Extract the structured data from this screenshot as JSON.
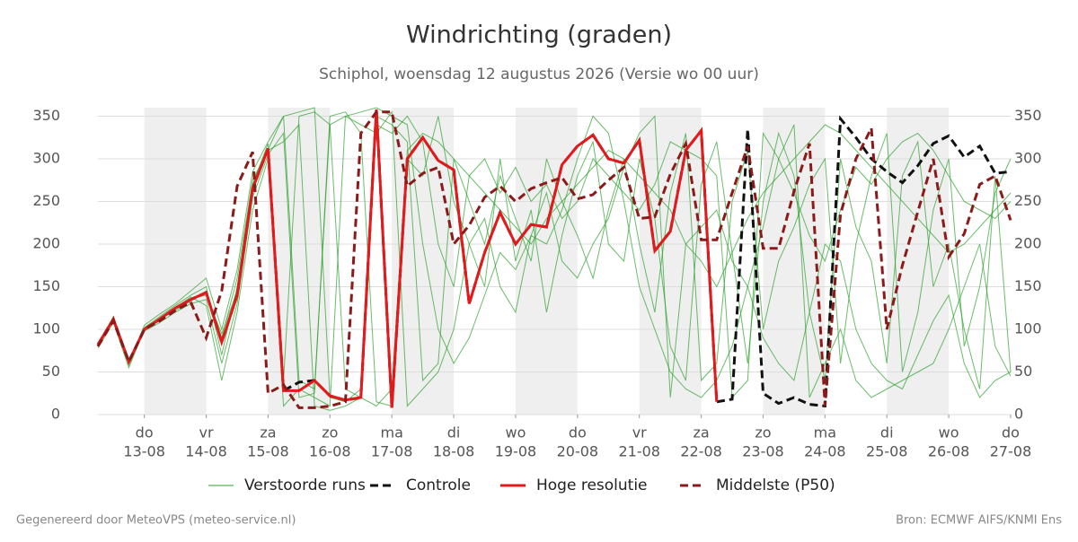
{
  "chart_data": {
    "type": "line",
    "title": "Windrichting (graden)",
    "subtitle": "Schiphol, woensdag 12 augustus 2026 (Versie wo 00 uur)",
    "footer_left": "Gegenereerd door MeteoVPS (meteo-service.nl)",
    "footer_right": "Bron: ECMWF AIFS/KNMI Ens",
    "categories": [
      null,
      null,
      null,
      "do",
      null,
      null,
      null,
      "vr",
      null,
      null,
      null,
      "za",
      null,
      null,
      null,
      "zo",
      null,
      null,
      null,
      "ma",
      null,
      null,
      null,
      "di",
      null,
      null,
      null,
      "wo",
      null,
      null,
      null,
      "do",
      null,
      null,
      null,
      "vr",
      null,
      null,
      null,
      "za",
      null,
      null,
      null,
      "zo",
      null,
      null,
      null,
      "ma",
      null,
      null,
      null,
      "di",
      null,
      null,
      null,
      "wo",
      null,
      null,
      null,
      "do"
    ],
    "category_dates": [
      null,
      null,
      null,
      "13-08",
      null,
      null,
      null,
      "14-08",
      null,
      null,
      null,
      "15-08",
      null,
      null,
      null,
      "16-08",
      null,
      null,
      null,
      "17-08",
      null,
      null,
      null,
      "18-08",
      null,
      null,
      null,
      "19-08",
      null,
      null,
      null,
      "20-08",
      null,
      null,
      null,
      "21-08",
      null,
      null,
      null,
      "22-08",
      null,
      null,
      null,
      "23-08",
      null,
      null,
      null,
      "24-08",
      null,
      null,
      null,
      "25-08",
      null,
      null,
      null,
      "26-08",
      null,
      null,
      null,
      "27-08"
    ],
    "ylim": [
      0,
      360
    ],
    "yticks": [
      0,
      50,
      100,
      150,
      200,
      250,
      300,
      350
    ],
    "grid": true,
    "ensemble": {
      "name": "Verstoorde runs",
      "color": "#2ca02c",
      "runs": [
        [
          80,
          115,
          58,
          102,
          115,
          128,
          140,
          150,
          70,
          150,
          270,
          318,
          40,
          350,
          355,
          340,
          30,
          20,
          350,
          340,
          320,
          40,
          60,
          300,
          250,
          200,
          280,
          230,
          180,
          300,
          250,
          210,
          160,
          240,
          300,
          200,
          120,
          260,
          330,
          40,
          60,
          250,
          310,
          100,
          180,
          220,
          270,
          300,
          60,
          200,
          280,
          330,
          50,
          120,
          240,
          300,
          80,
          150,
          260,
          300
        ],
        [
          83,
          110,
          65,
          98,
          108,
          120,
          130,
          135,
          60,
          130,
          255,
          305,
          330,
          20,
          25,
          350,
          355,
          330,
          15,
          10,
          300,
          280,
          350,
          250,
          200,
          150,
          300,
          180,
          240,
          120,
          210,
          280,
          320,
          200,
          180,
          300,
          230,
          80,
          40,
          270,
          320,
          190,
          60,
          250,
          330,
          280,
          120,
          40,
          300,
          220,
          180,
          60,
          280,
          320,
          150,
          200,
          100,
          30,
          280,
          50
        ],
        [
          81,
          112,
          60,
          105,
          118,
          130,
          145,
          160,
          100,
          170,
          285,
          320,
          350,
          355,
          360,
          20,
          15,
          30,
          340,
          330,
          350,
          320,
          200,
          150,
          280,
          300,
          260,
          290,
          250,
          270,
          230,
          250,
          300,
          280,
          260,
          240,
          270,
          320,
          310,
          300,
          280,
          20,
          40,
          330,
          300,
          260,
          210,
          180,
          240,
          290,
          270,
          300,
          320,
          330,
          310,
          280,
          250,
          240,
          230,
          250
        ],
        [
          78,
          108,
          55,
          100,
          110,
          125,
          138,
          128,
          40,
          120,
          240,
          300,
          10,
          30,
          20,
          10,
          350,
          340,
          330,
          355,
          10,
          30,
          50,
          100,
          200,
          230,
          150,
          120,
          210,
          260,
          180,
          160,
          200,
          230,
          290,
          330,
          350,
          20,
          200,
          220,
          240,
          180,
          150,
          90,
          60,
          40,
          120,
          200,
          180,
          100,
          60,
          40,
          30,
          70,
          110,
          140,
          60,
          20,
          40,
          50
        ],
        [
          82,
          114,
          63,
          99,
          113,
          122,
          133,
          145,
          90,
          160,
          275,
          310,
          320,
          340,
          10,
          5,
          10,
          20,
          10,
          30,
          310,
          330,
          320,
          300,
          280,
          260,
          240,
          220,
          200,
          230,
          250,
          270,
          290,
          310,
          300,
          280,
          260,
          240,
          200,
          180,
          150,
          190,
          230,
          260,
          280,
          300,
          320,
          340,
          330,
          310,
          290,
          270,
          250,
          230,
          210,
          190,
          200,
          220,
          240,
          260
        ],
        [
          80,
          111,
          61,
          101,
          112,
          124,
          136,
          140,
          95,
          145,
          262,
          311,
          350,
          40,
          30,
          340,
          350,
          355,
          360,
          350,
          340,
          200,
          100,
          60,
          90,
          140,
          190,
          170,
          210,
          200,
          240,
          300,
          350,
          330,
          250,
          150,
          100,
          50,
          30,
          20,
          40,
          80,
          150,
          220,
          300,
          340,
          20,
          60,
          100,
          40,
          20,
          30,
          40,
          50,
          60,
          100,
          150,
          200,
          80,
          45
        ]
      ]
    },
    "series": [
      {
        "name": "Controle",
        "color": "#111111",
        "dash": "dashed",
        "values": [
          82,
          112,
          62,
          100,
          112,
          125,
          135,
          143,
          85,
          140,
          265,
          312,
          28,
          38,
          40,
          22,
          17,
          20,
          358,
          8,
          300,
          325,
          298,
          287,
          130,
          190,
          237,
          200,
          223,
          220,
          293,
          315,
          328,
          300,
          295,
          322,
          192,
          215,
          310,
          333,
          15,
          18,
          335,
          25,
          13,
          20,
          12,
          10,
          347,
          325,
          300,
          285,
          272,
          292,
          318,
          327,
          302,
          315,
          283,
          285
        ]
      },
      {
        "name": "Hoge resolutie",
        "color": "#e31a1c",
        "dash": "solid",
        "values": [
          82,
          112,
          62,
          100,
          112,
          125,
          135,
          143,
          85,
          140,
          265,
          312,
          28,
          28,
          40,
          22,
          17,
          20,
          358,
          8,
          300,
          325,
          298,
          287,
          130,
          190,
          237,
          200,
          223,
          220,
          293,
          315,
          328,
          300,
          295,
          322,
          192,
          215,
          310,
          333,
          15,
          null,
          null,
          null,
          null,
          null,
          null,
          null,
          null,
          null,
          null,
          null,
          null,
          null,
          null,
          null,
          null,
          null,
          null,
          null
        ]
      },
      {
        "name": "Middelste (P50)",
        "color": "#8b1a1a",
        "dash": "dashed",
        "values": [
          80,
          110,
          62,
          100,
          110,
          122,
          132,
          90,
          145,
          268,
          308,
          25,
          35,
          8,
          8,
          10,
          15,
          330,
          355,
          355,
          268,
          283,
          290,
          200,
          222,
          255,
          268,
          250,
          265,
          272,
          278,
          253,
          258,
          275,
          290,
          230,
          232,
          282,
          318,
          205,
          205,
          260,
          315,
          195,
          195,
          262,
          318,
          10,
          235,
          300,
          336,
          100,
          175,
          238,
          300,
          185,
          212,
          270,
          280,
          228
        ]
      }
    ]
  }
}
